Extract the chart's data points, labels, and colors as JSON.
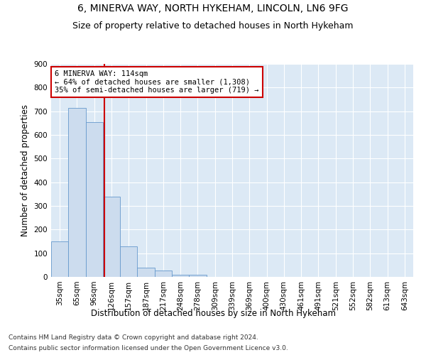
{
  "title1": "6, MINERVA WAY, NORTH HYKEHAM, LINCOLN, LN6 9FG",
  "title2": "Size of property relative to detached houses in North Hykeham",
  "xlabel": "Distribution of detached houses by size in North Hykeham",
  "ylabel": "Number of detached properties",
  "categories": [
    "35sqm",
    "65sqm",
    "96sqm",
    "126sqm",
    "157sqm",
    "187sqm",
    "217sqm",
    "248sqm",
    "278sqm",
    "309sqm",
    "339sqm",
    "369sqm",
    "400sqm",
    "430sqm",
    "461sqm",
    "491sqm",
    "521sqm",
    "552sqm",
    "582sqm",
    "613sqm",
    "643sqm"
  ],
  "values": [
    150,
    715,
    655,
    340,
    130,
    38,
    28,
    10,
    8,
    0,
    0,
    0,
    0,
    0,
    0,
    0,
    0,
    0,
    0,
    0,
    0
  ],
  "bar_color": "#ccdcee",
  "bar_edge_color": "#6699cc",
  "vline_color": "#cc0000",
  "vline_x": 2.58,
  "annotation_text": "6 MINERVA WAY: 114sqm\n← 64% of detached houses are smaller (1,308)\n35% of semi-detached houses are larger (719) →",
  "annotation_box_facecolor": "#ffffff",
  "annotation_box_edgecolor": "#cc0000",
  "ylim": [
    0,
    900
  ],
  "yticks": [
    0,
    100,
    200,
    300,
    400,
    500,
    600,
    700,
    800,
    900
  ],
  "background_color": "#dce9f5",
  "grid_color": "#ffffff",
  "footer1": "Contains HM Land Registry data © Crown copyright and database right 2024.",
  "footer2": "Contains public sector information licensed under the Open Government Licence v3.0.",
  "title1_fontsize": 10,
  "title2_fontsize": 9,
  "xlabel_fontsize": 8.5,
  "ylabel_fontsize": 8.5,
  "tick_fontsize": 7.5,
  "annotation_fontsize": 7.5,
  "footer_fontsize": 6.5
}
